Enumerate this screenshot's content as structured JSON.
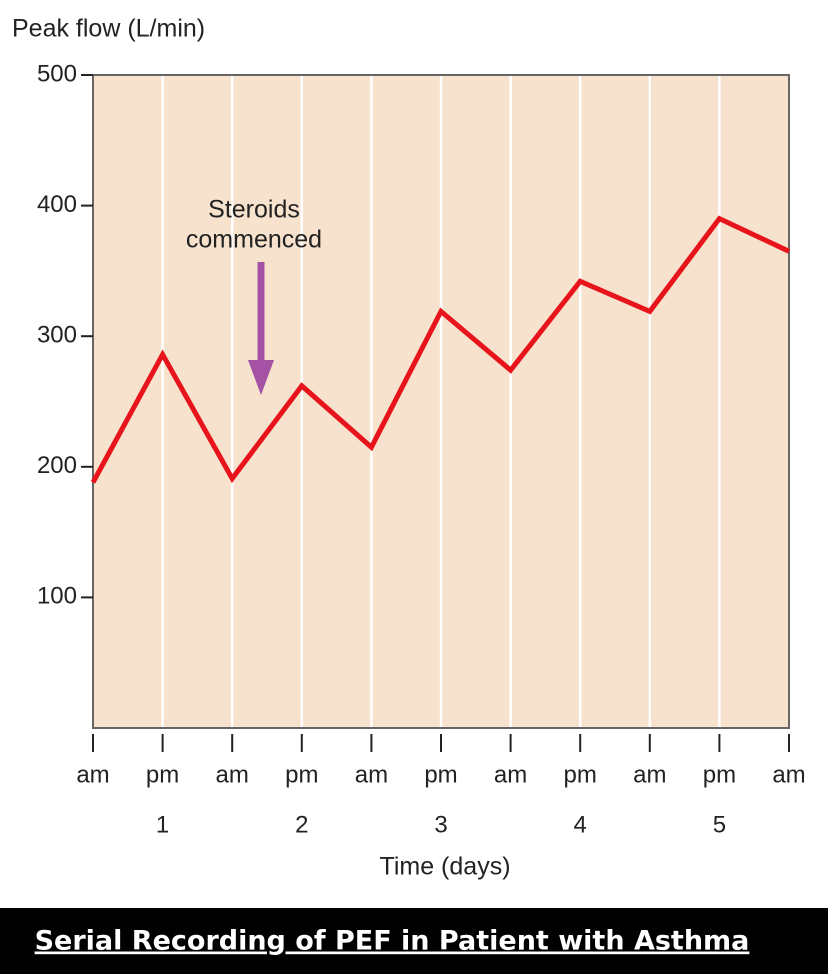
{
  "chart_data": {
    "type": "line",
    "y_label": "Peak flow (L/min)",
    "x_label": "Time (days)",
    "categories": [
      "am",
      "pm",
      "am",
      "pm",
      "am",
      "pm",
      "am",
      "pm",
      "am",
      "pm",
      "am"
    ],
    "day_labels": [
      null,
      1,
      null,
      2,
      null,
      3,
      null,
      4,
      null,
      5,
      null
    ],
    "series": [
      {
        "color": "#e8141c",
        "values": [
          188,
          286,
          191,
          262,
          215,
          319,
          274,
          342,
          319,
          390,
          365
        ]
      }
    ],
    "ylim": [
      0,
      500
    ],
    "yticks": [
      100,
      200,
      300,
      400,
      500
    ],
    "grid": true,
    "annotation_lines": [
      "Steroids",
      "commenced"
    ],
    "caption": "Serial Recording of PEF in Patient with Asthma"
  }
}
